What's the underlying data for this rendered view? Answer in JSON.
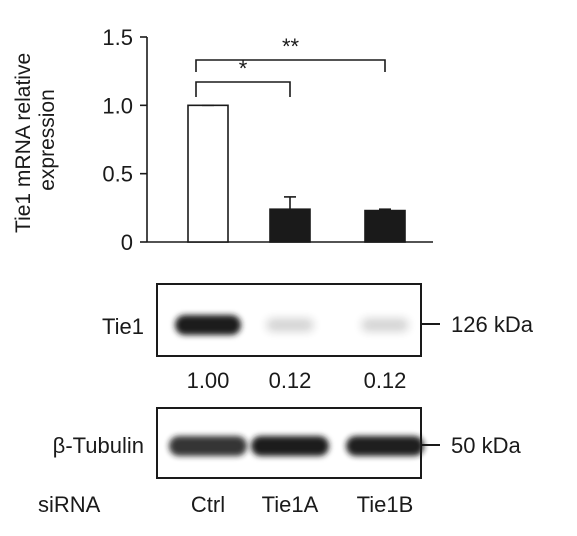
{
  "chart_data": {
    "type": "bar",
    "categories": [
      "Ctrl",
      "Tie1A",
      "Tie1B"
    ],
    "values": [
      1.0,
      0.24,
      0.23
    ],
    "errors": [
      0.0,
      0.09,
      0.01
    ],
    "bar_fills": [
      "#ffffff",
      "#1a1a1a",
      "#1a1a1a"
    ],
    "ylabel_lines": [
      "Tie1 mRNA relative",
      "expression"
    ],
    "ylim": [
      0,
      1.5
    ],
    "yticks": [
      0,
      0.5,
      1.0,
      1.5
    ],
    "ytick_labels": [
      "0",
      "0.5",
      "1.0",
      "1.5"
    ],
    "significance": [
      {
        "from": "Ctrl",
        "to": "Tie1A",
        "label": "*"
      },
      {
        "from": "Ctrl",
        "to": "Tie1B",
        "label": "**"
      }
    ],
    "grid": false,
    "legend": "none"
  },
  "blots": [
    {
      "label": "Tie1",
      "size_marker": "126 kDa",
      "band_intensity": [
        1.0,
        0.12,
        0.12
      ],
      "quantification": [
        "1.00",
        "0.12",
        "0.12"
      ]
    },
    {
      "label": "β-Tubulin",
      "size_marker": "50 kDa",
      "band_intensity": [
        0.85,
        1.0,
        0.95
      ]
    }
  ],
  "lanes": {
    "row_label": "siRNA",
    "names": [
      "Ctrl",
      "Tie1A",
      "Tie1B"
    ]
  },
  "colors": {
    "ink": "#1a1a1a",
    "blot_background": "#ffffff",
    "band": "#1e1e1e"
  }
}
